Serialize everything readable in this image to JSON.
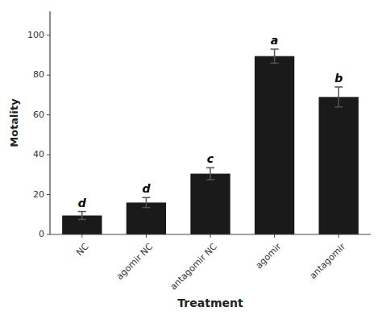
{
  "chart_data": {
    "type": "bar",
    "xlabel": "Treatment",
    "ylabel": "Motality",
    "categories": [
      "NC",
      "agomir NC",
      "antagomir NC",
      "agomir",
      "antagomir"
    ],
    "values": [
      9.5,
      16.0,
      30.5,
      89.5,
      69.0
    ],
    "errors": [
      2.0,
      2.5,
      3.0,
      3.5,
      5.0
    ],
    "annotations": [
      "d",
      "d",
      "c",
      "a",
      "b"
    ],
    "color": "#1a1a1a",
    "ylim": [
      0,
      112
    ],
    "yticks": [
      0,
      20,
      40,
      60,
      80,
      100
    ],
    "grid": false
  }
}
